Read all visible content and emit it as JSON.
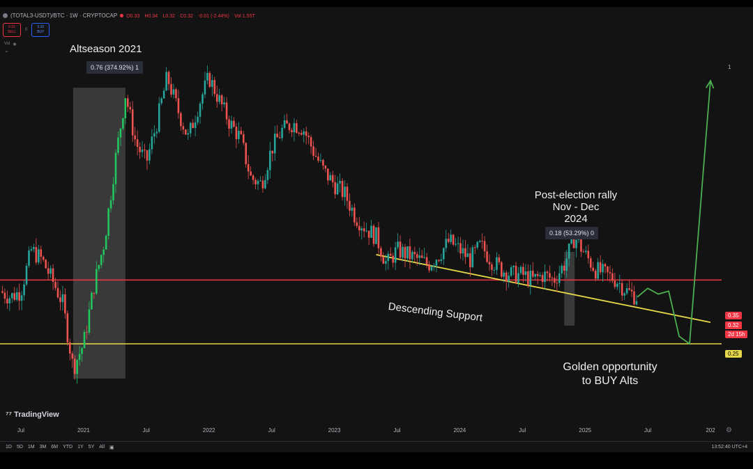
{
  "header": {
    "symbol": "(TOTAL3-USDT)/BTC · 1W · CRYPTOCAP",
    "ohlc": [
      "O0.33",
      "H0.34",
      "L0.32",
      "C0.32",
      "-0.01 (-2.44%)",
      "Vol 1.55T"
    ],
    "sell_label": "SELL",
    "buy_label": "BUY",
    "vol_label": "Vol"
  },
  "annotations": {
    "altseason": "Altseason 2021",
    "altseason_measure": "0.76 (374.92%) 1",
    "post_election_1": "Post-election rally",
    "post_election_2": "Nov - Dec",
    "post_election_3": "2024",
    "post_election_measure": "0.18 (53.29%) 0",
    "descending": "Descending Support",
    "golden_1": "Golden opportunity",
    "golden_2": "to BUY Alts"
  },
  "price_labels": {
    "red_line": "0.35",
    "current": "0.32",
    "countdown": "2d 15h",
    "yellow_line": "0.25",
    "scale_top": "1"
  },
  "colors": {
    "up": "#26a69a",
    "up_bright": "#22c55e",
    "down": "#ef5350",
    "resistance": "#f23645",
    "support": "#e6d84a",
    "projection": "#4caf50",
    "highlight": "#5a5a5a"
  },
  "branding": "TradingView",
  "bottom_bar": {
    "periods": [
      "1D",
      "5D",
      "1M",
      "3M",
      "6M",
      "YTD",
      "1Y",
      "5Y",
      "All"
    ],
    "utc": "13:52:40 UTC+4"
  },
  "chart_data": {
    "type": "line",
    "title": "(TOTAL3-USDT)/BTC",
    "timeframe": "1W",
    "x_ticks": [
      "Jul",
      "2021",
      "Jul",
      "2022",
      "Jul",
      "2023",
      "Jul",
      "2024",
      "Jul",
      "2025",
      "Jul",
      "202"
    ],
    "xlim": [
      "2020-05",
      "2026-02"
    ],
    "y_scale": "log",
    "series": [
      {
        "points": [
          [
            "2020-05",
            0.33
          ],
          [
            "2020-06",
            0.32
          ],
          [
            "2020-07",
            0.33
          ],
          [
            "2020-08",
            0.41
          ],
          [
            "2020-09",
            0.39
          ],
          [
            "2020-10",
            0.35
          ],
          [
            "2020-11",
            0.31
          ],
          [
            "2020-12",
            0.22
          ],
          [
            "2021-01",
            0.25
          ],
          [
            "2021-02",
            0.34
          ],
          [
            "2021-03",
            0.43
          ],
          [
            "2021-04",
            0.65
          ],
          [
            "2021-05",
            0.93
          ],
          [
            "2021-06",
            0.72
          ],
          [
            "2021-07",
            0.65
          ],
          [
            "2021-08",
            0.8
          ],
          [
            "2021-09",
            1.02
          ],
          [
            "2021-10",
            0.86
          ],
          [
            "2021-11",
            0.74
          ],
          [
            "2021-12",
            0.88
          ],
          [
            "2022-01",
            1.02
          ],
          [
            "2022-02",
            0.9
          ],
          [
            "2022-03",
            0.8
          ],
          [
            "2022-04",
            0.74
          ],
          [
            "2022-05",
            0.6
          ],
          [
            "2022-06",
            0.58
          ],
          [
            "2022-07",
            0.7
          ],
          [
            "2022-08",
            0.77
          ],
          [
            "2022-09",
            0.8
          ],
          [
            "2022-10",
            0.78
          ],
          [
            "2022-11",
            0.69
          ],
          [
            "2022-12",
            0.62
          ],
          [
            "2023-01",
            0.58
          ],
          [
            "2023-02",
            0.55
          ],
          [
            "2023-03",
            0.49
          ],
          [
            "2023-04",
            0.46
          ],
          [
            "2023-05",
            0.44
          ],
          [
            "2023-06",
            0.38
          ],
          [
            "2023-07",
            0.41
          ],
          [
            "2023-08",
            0.4
          ],
          [
            "2023-09",
            0.39
          ],
          [
            "2023-10",
            0.38
          ],
          [
            "2023-11",
            0.4
          ],
          [
            "2023-12",
            0.43
          ],
          [
            "2024-01",
            0.41
          ],
          [
            "2024-02",
            0.39
          ],
          [
            "2024-03",
            0.42
          ],
          [
            "2024-04",
            0.39
          ],
          [
            "2024-05",
            0.37
          ],
          [
            "2024-06",
            0.36
          ],
          [
            "2024-07",
            0.36
          ],
          [
            "2024-08",
            0.35
          ],
          [
            "2024-09",
            0.36
          ],
          [
            "2024-10",
            0.35
          ],
          [
            "2024-11",
            0.38
          ],
          [
            "2024-12",
            0.44
          ],
          [
            "2025-01",
            0.4
          ],
          [
            "2025-02",
            0.37
          ],
          [
            "2025-03",
            0.36
          ],
          [
            "2025-04",
            0.35
          ],
          [
            "2025-05",
            0.33
          ],
          [
            "2025-06",
            0.32
          ]
        ]
      },
      {
        "style": "projection",
        "points": [
          [
            "2025-06",
            0.32
          ],
          [
            "2025-07",
            0.335
          ],
          [
            "2025-08",
            0.325
          ],
          [
            "2025-09",
            0.33
          ],
          [
            "2025-10",
            0.26
          ],
          [
            "2025-11",
            0.25
          ],
          [
            "2026-01",
            1.0
          ]
        ]
      }
    ],
    "lines": [
      {
        "style": "horizontal",
        "value": 0.35,
        "color": "#f23645"
      },
      {
        "style": "horizontal",
        "value": 0.25,
        "color": "#e6d84a"
      },
      {
        "style": "trendline",
        "from": [
          "2023-05",
          0.4
        ],
        "to": [
          "2026-01",
          0.28
        ],
        "color": "#e6d84a"
      }
    ],
    "highlights": [
      {
        "from": "2020-12",
        "to": "2021-05",
        "label": "0.76 (374.92%) 1"
      },
      {
        "from": "2024-11",
        "to": "2024-12",
        "label": "0.18 (53.29%) 0"
      }
    ]
  }
}
